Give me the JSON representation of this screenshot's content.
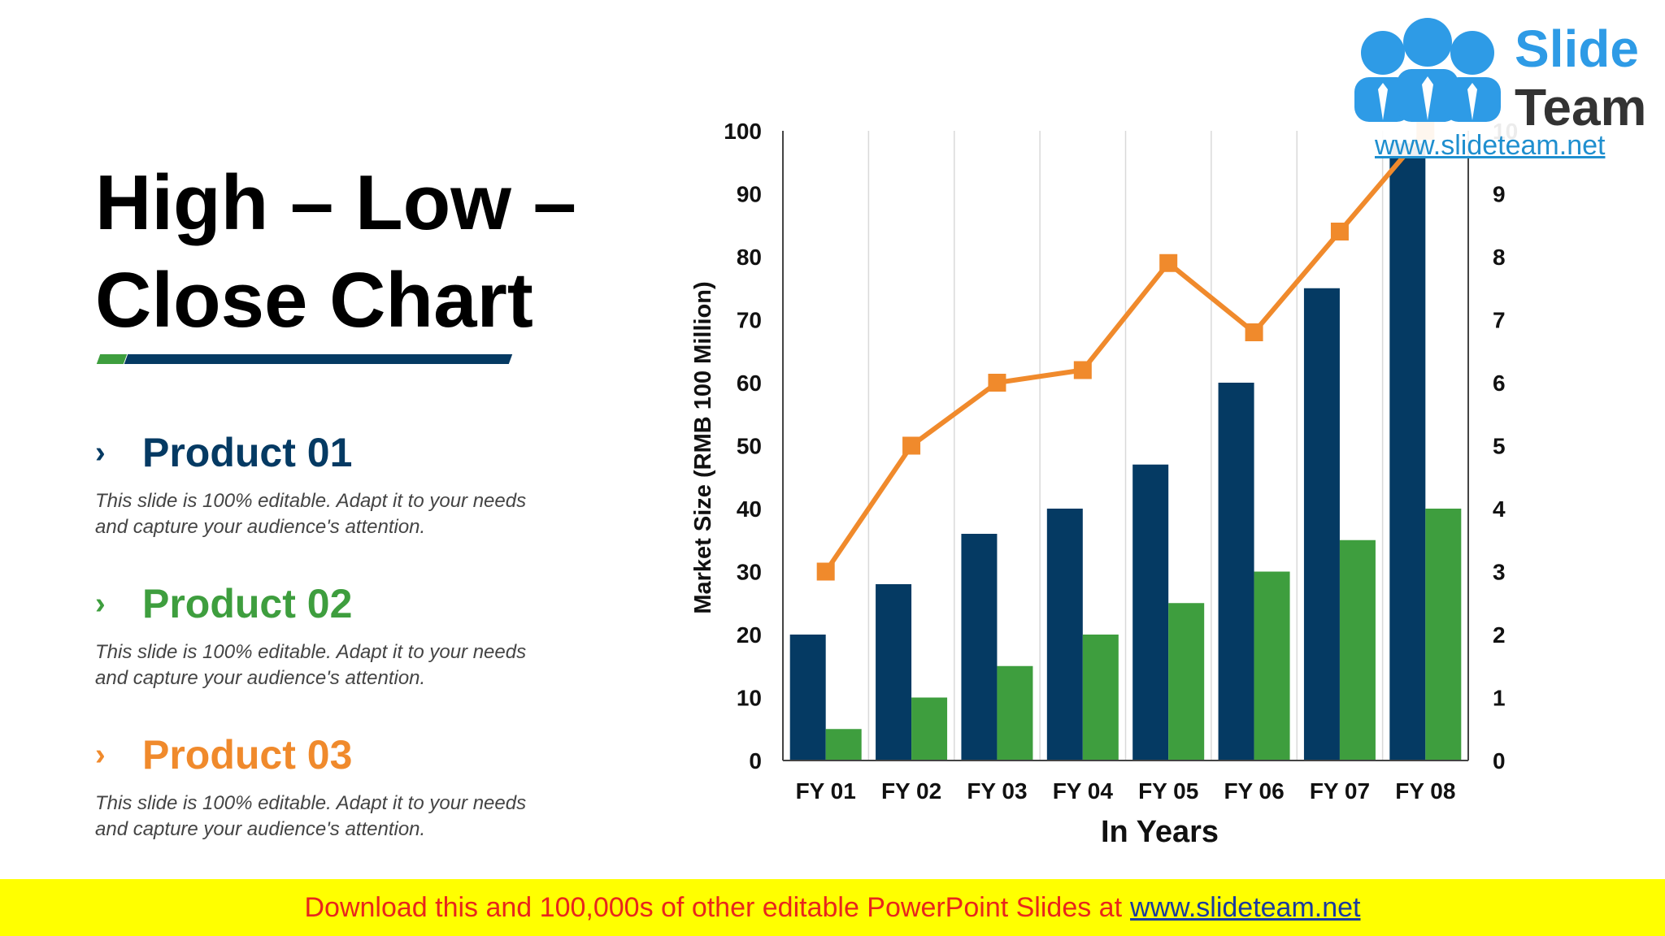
{
  "slide": {
    "title_line1": "High – Low –",
    "title_line2": "Close Chart"
  },
  "products": [
    {
      "name": "Product 01",
      "color": "#053a63",
      "desc_line1": "This slide is 100% editable. Adapt it to your needs",
      "desc_line2": "and capture your audience's attention."
    },
    {
      "name": "Product 02",
      "color": "#3e9e3e",
      "desc_line1": "This slide is 100% editable. Adapt it to your needs",
      "desc_line2": "and capture your audience's attention."
    },
    {
      "name": "Product 03",
      "color": "#f08a2c",
      "desc_line1": "This slide is 100% editable. Adapt it to your needs",
      "desc_line2": "and capture your audience's attention."
    }
  ],
  "chevron": "›",
  "chart_data": {
    "type": "bar",
    "categories": [
      "FY 01",
      "FY 02",
      "FY 03",
      "FY 04",
      "FY 05",
      "FY 06",
      "FY 07",
      "FY 08"
    ],
    "series": [
      {
        "values": [
          20,
          28,
          36,
          40,
          47,
          60,
          75,
          98
        ],
        "color": "#053a63",
        "kind": "bar",
        "axis": "left"
      },
      {
        "values": [
          5,
          10,
          15,
          20,
          25,
          30,
          35,
          40
        ],
        "color": "#3e9e3e",
        "kind": "bar",
        "axis": "left"
      },
      {
        "values": [
          3,
          5,
          6,
          6.2,
          7.9,
          6.8,
          8.4,
          10
        ],
        "color": "#f08a2c",
        "kind": "line",
        "axis": "right"
      }
    ],
    "xlabel": "In Years",
    "ylabel": "Market Size (RMB 100 Million)",
    "ylim": [
      0,
      100
    ],
    "y2lim": [
      0,
      10
    ],
    "yticks": [
      "0",
      "10",
      "20",
      "30",
      "40",
      "50",
      "60",
      "70",
      "80",
      "90",
      "100"
    ],
    "y2ticks": [
      "0",
      "1",
      "2",
      "3",
      "4",
      "5",
      "6",
      "7",
      "8",
      "9",
      "10"
    ],
    "grid": "vertical",
    "legend": "none"
  },
  "logo": {
    "word1": "Slide",
    "word2": "Team",
    "url": "www.slideteam.net",
    "color_blue": "#2e9be6",
    "color_dark": "#333333"
  },
  "footer": {
    "message": "Download this and 100,000s of other editable PowerPoint Slides at",
    "link": "www.slideteam.net",
    "bg_color": "#ffff00"
  }
}
